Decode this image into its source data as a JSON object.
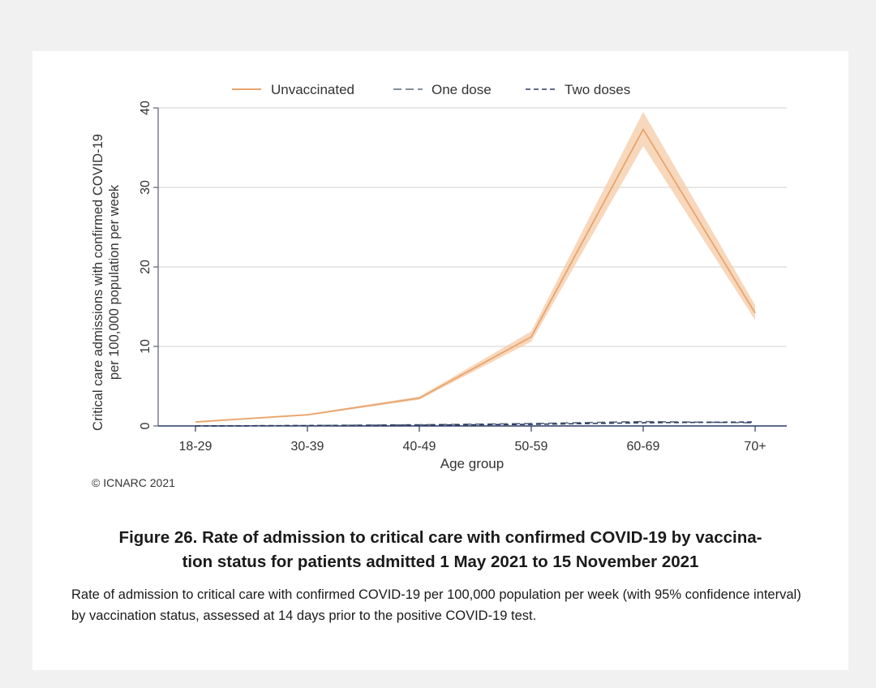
{
  "chart_data": {
    "type": "line",
    "title": "",
    "xlabel": "Age group",
    "ylabel_line1": "Critical care admissions with confirmed COVID-19",
    "ylabel_line2": "per 100,000 population per week",
    "categories": [
      "18-29",
      "30-39",
      "40-49",
      "50-59",
      "60-69",
      "70+"
    ],
    "ylim": [
      0,
      40
    ],
    "yticks": [
      0,
      10,
      20,
      30,
      40
    ],
    "grid": true,
    "legend_position": "top",
    "series": [
      {
        "name": "Unvaccinated",
        "style": "solid",
        "color": "#e8a46c",
        "values": [
          0.5,
          1.4,
          3.5,
          11.2,
          37.3,
          14.2
        ],
        "ci_lower": [
          0.4,
          1.3,
          3.3,
          10.6,
          35.2,
          13.3
        ],
        "ci_upper": [
          0.6,
          1.5,
          3.7,
          11.9,
          39.5,
          15.2
        ]
      },
      {
        "name": "One dose",
        "style": "longdash",
        "color": "#5a6a7a",
        "values": [
          0.0,
          0.05,
          0.15,
          0.3,
          0.55,
          0.4
        ],
        "ci_lower": [
          0.0,
          0.0,
          0.1,
          0.2,
          0.4,
          0.3
        ],
        "ci_upper": [
          0.05,
          0.1,
          0.2,
          0.4,
          0.7,
          0.5
        ]
      },
      {
        "name": "Two doses",
        "style": "shortdash",
        "color": "#2a3a66",
        "values": [
          0.0,
          0.05,
          0.1,
          0.2,
          0.4,
          0.5
        ],
        "ci_lower": [
          0.0,
          0.0,
          0.05,
          0.15,
          0.35,
          0.45
        ],
        "ci_upper": [
          0.05,
          0.1,
          0.15,
          0.25,
          0.45,
          0.55
        ]
      }
    ]
  },
  "credit": "© ICNARC 2021",
  "figure": {
    "title_line1": "Figure 26. Rate of admission to critical care with confirmed COVID-19 by vaccina-",
    "title_line2": "tion status for patients admitted 1 May 2021 to 15 November 2021",
    "description": "Rate of admission to critical care with confirmed COVID-19 per 100,000 population per week (with 95% confidence interval) by vaccination status, assessed at 14 days prior to the positive COVID-19 test."
  }
}
